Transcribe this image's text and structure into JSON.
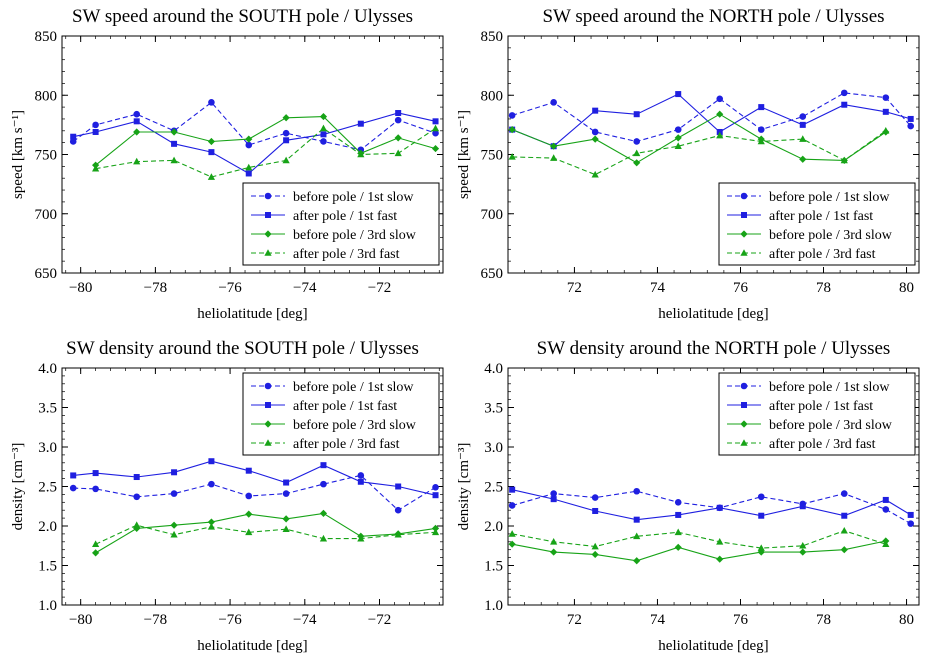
{
  "chart_data": [
    {
      "type": "line",
      "title": "SW speed around the SOUTH pole / Ulysses",
      "xlabel": "heliolatitude [deg]",
      "ylabel": "speed [km s⁻¹]",
      "xlim": [
        -80.5,
        -70.3
      ],
      "ylim": [
        650,
        850
      ],
      "xticks": [
        -80,
        -78,
        -76,
        -74,
        -72
      ],
      "yticks": [
        650,
        700,
        750,
        800,
        850
      ],
      "legend_position": "bottom-right",
      "series": [
        {
          "name": "before pole / 1st slow",
          "color": "#1f1fe0",
          "dash": true,
          "marker": "circle",
          "x": [
            -80.2,
            -79.6,
            -78.5,
            -77.5,
            -76.5,
            -75.5,
            -74.5,
            -73.5,
            -72.5,
            -71.5,
            -70.5
          ],
          "y": [
            761,
            775,
            784,
            770,
            794,
            758,
            768,
            761,
            754,
            779,
            768
          ]
        },
        {
          "name": "after pole / 1st fast",
          "color": "#1f1fe0",
          "dash": false,
          "marker": "square",
          "x": [
            -80.2,
            -79.6,
            -78.5,
            -77.5,
            -76.5,
            -75.5,
            -74.5,
            -73.5,
            -72.5,
            -71.5,
            -70.5
          ],
          "y": [
            765,
            769,
            778,
            759,
            752,
            734,
            762,
            767,
            776,
            785,
            778
          ]
        },
        {
          "name": "before pole / 3rd slow",
          "color": "#17a317",
          "dash": false,
          "marker": "diamond",
          "x": [
            -79.6,
            -78.5,
            -77.5,
            -76.5,
            -75.5,
            -74.5,
            -73.5,
            -72.5,
            -71.5,
            -70.5
          ],
          "y": [
            741,
            769,
            769,
            761,
            763,
            781,
            782,
            751,
            764,
            755
          ]
        },
        {
          "name": "after pole / 3rd fast",
          "color": "#17a317",
          "dash": true,
          "marker": "triangle",
          "x": [
            -79.6,
            -78.5,
            -77.5,
            -76.5,
            -75.5,
            -74.5,
            -73.5,
            -72.5,
            -71.5,
            -70.5
          ],
          "y": [
            738,
            744,
            745,
            731,
            739,
            745,
            772,
            750,
            751,
            772
          ]
        }
      ]
    },
    {
      "type": "line",
      "title": "SW speed around the NORTH pole / Ulysses",
      "xlabel": "heliolatitude [deg]",
      "ylabel": "speed [km s⁻¹]",
      "xlim": [
        70.4,
        80.3
      ],
      "ylim": [
        650,
        850
      ],
      "xticks": [
        72,
        74,
        76,
        78,
        80
      ],
      "yticks": [
        650,
        700,
        750,
        800,
        850
      ],
      "legend_position": "bottom-right",
      "series": [
        {
          "name": "before pole / 1st slow",
          "color": "#1f1fe0",
          "dash": true,
          "marker": "circle",
          "x": [
            70.5,
            71.5,
            72.5,
            73.5,
            74.5,
            75.5,
            76.5,
            77.5,
            78.5,
            79.5,
            80.1
          ],
          "y": [
            783,
            794,
            769,
            761,
            771,
            797,
            771,
            782,
            802,
            798,
            774
          ]
        },
        {
          "name": "after pole / 1st fast",
          "color": "#1f1fe0",
          "dash": false,
          "marker": "square",
          "x": [
            70.5,
            71.5,
            72.5,
            73.5,
            74.5,
            75.5,
            76.5,
            77.5,
            78.5,
            79.5,
            80.1
          ],
          "y": [
            771,
            757,
            787,
            784,
            801,
            769,
            790,
            775,
            792,
            786,
            780
          ]
        },
        {
          "name": "before pole / 3rd slow",
          "color": "#17a317",
          "dash": false,
          "marker": "diamond",
          "x": [
            70.5,
            71.5,
            72.5,
            73.5,
            74.5,
            75.5,
            76.5,
            77.5,
            78.5,
            79.5
          ],
          "y": [
            771,
            757,
            763,
            743,
            764,
            784,
            763,
            746,
            745,
            769
          ]
        },
        {
          "name": "after pole / 3rd fast",
          "color": "#17a317",
          "dash": true,
          "marker": "triangle",
          "x": [
            70.5,
            71.5,
            72.5,
            73.5,
            74.5,
            75.5,
            76.5,
            77.5,
            78.5,
            79.5
          ],
          "y": [
            748,
            747,
            733,
            751,
            757,
            766,
            761,
            763,
            745,
            770
          ]
        }
      ]
    },
    {
      "type": "line",
      "title": "SW density around the SOUTH pole / Ulysses",
      "xlabel": "heliolatitude [deg]",
      "ylabel": "density [cm⁻³]",
      "xlim": [
        -80.5,
        -70.3
      ],
      "ylim": [
        1.0,
        4.0
      ],
      "xticks": [
        -80,
        -78,
        -76,
        -74,
        -72
      ],
      "yticks": [
        1.0,
        1.5,
        2.0,
        2.5,
        3.0,
        3.5,
        4.0
      ],
      "legend_position": "top-right",
      "series": [
        {
          "name": "before pole / 1st slow",
          "color": "#1f1fe0",
          "dash": true,
          "marker": "circle",
          "x": [
            -80.2,
            -79.6,
            -78.5,
            -77.5,
            -76.5,
            -75.5,
            -74.5,
            -73.5,
            -72.5,
            -71.5,
            -70.5
          ],
          "y": [
            2.48,
            2.47,
            2.37,
            2.41,
            2.53,
            2.38,
            2.41,
            2.53,
            2.64,
            2.2,
            2.49
          ]
        },
        {
          "name": "after pole / 1st fast",
          "color": "#1f1fe0",
          "dash": false,
          "marker": "square",
          "x": [
            -80.2,
            -79.6,
            -78.5,
            -77.5,
            -76.5,
            -75.5,
            -74.5,
            -73.5,
            -72.5,
            -71.5,
            -70.5
          ],
          "y": [
            2.64,
            2.67,
            2.62,
            2.68,
            2.82,
            2.7,
            2.55,
            2.77,
            2.56,
            2.5,
            2.39
          ]
        },
        {
          "name": "before pole / 3rd slow",
          "color": "#17a317",
          "dash": false,
          "marker": "diamond",
          "x": [
            -79.6,
            -78.5,
            -77.5,
            -76.5,
            -75.5,
            -74.5,
            -73.5,
            -72.5,
            -71.5,
            -70.5
          ],
          "y": [
            1.66,
            1.97,
            2.01,
            2.05,
            2.15,
            2.09,
            2.16,
            1.87,
            1.9,
            1.97
          ]
        },
        {
          "name": "after pole / 3rd fast",
          "color": "#17a317",
          "dash": true,
          "marker": "triangle",
          "x": [
            -79.6,
            -78.5,
            -77.5,
            -76.5,
            -75.5,
            -74.5,
            -73.5,
            -72.5,
            -71.5,
            -70.5
          ],
          "y": [
            1.77,
            2.01,
            1.89,
            1.99,
            1.92,
            1.96,
            1.84,
            1.84,
            1.89,
            1.92
          ]
        }
      ]
    },
    {
      "type": "line",
      "title": "SW density around the NORTH pole / Ulysses",
      "xlabel": "heliolatitude [deg]",
      "ylabel": "density [cm⁻³]",
      "xlim": [
        70.4,
        80.3
      ],
      "ylim": [
        1.0,
        4.0
      ],
      "xticks": [
        72,
        74,
        76,
        78,
        80
      ],
      "yticks": [
        1.0,
        1.5,
        2.0,
        2.5,
        3.0,
        3.5,
        4.0
      ],
      "legend_position": "top-right",
      "series": [
        {
          "name": "before pole / 1st slow",
          "color": "#1f1fe0",
          "dash": true,
          "marker": "circle",
          "x": [
            70.5,
            71.5,
            72.5,
            73.5,
            74.5,
            75.5,
            76.5,
            77.5,
            78.5,
            79.5,
            80.1
          ],
          "y": [
            2.26,
            2.41,
            2.36,
            2.44,
            2.3,
            2.23,
            2.37,
            2.28,
            2.41,
            2.21,
            2.03
          ]
        },
        {
          "name": "after pole / 1st fast",
          "color": "#1f1fe0",
          "dash": false,
          "marker": "square",
          "x": [
            70.5,
            71.5,
            72.5,
            73.5,
            74.5,
            75.5,
            76.5,
            77.5,
            78.5,
            79.5,
            80.1
          ],
          "y": [
            2.46,
            2.34,
            2.19,
            2.08,
            2.14,
            2.23,
            2.13,
            2.25,
            2.13,
            2.33,
            2.14
          ]
        },
        {
          "name": "before pole / 3rd slow",
          "color": "#17a317",
          "dash": false,
          "marker": "diamond",
          "x": [
            70.5,
            71.5,
            72.5,
            73.5,
            74.5,
            75.5,
            76.5,
            77.5,
            78.5,
            79.5
          ],
          "y": [
            1.77,
            1.67,
            1.64,
            1.56,
            1.73,
            1.58,
            1.67,
            1.67,
            1.7,
            1.81
          ]
        },
        {
          "name": "after pole / 3rd fast",
          "color": "#17a317",
          "dash": true,
          "marker": "triangle",
          "x": [
            70.5,
            71.5,
            72.5,
            73.5,
            74.5,
            75.5,
            76.5,
            77.5,
            78.5,
            79.5
          ],
          "y": [
            1.9,
            1.8,
            1.74,
            1.87,
            1.92,
            1.8,
            1.72,
            1.75,
            1.94,
            1.77
          ]
        }
      ]
    }
  ]
}
